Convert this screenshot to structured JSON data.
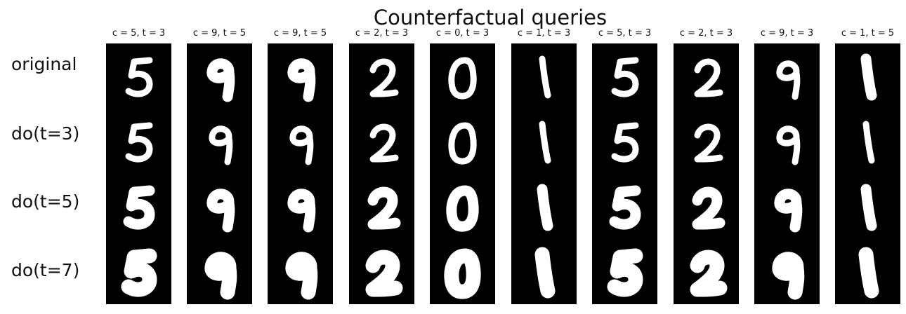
{
  "title": "Counterfactual queries",
  "row_labels": [
    "original",
    "do(t=3)",
    "do(t=5)",
    "do(t=7)"
  ],
  "columns": [
    {
      "label": "c = 5, t = 3",
      "digit": 5,
      "thickness_per_row": [
        3,
        3,
        5,
        7
      ]
    },
    {
      "label": "c = 9, t = 5",
      "digit": 9,
      "thickness_per_row": [
        5,
        3,
        5,
        7
      ]
    },
    {
      "label": "c = 9, t = 5",
      "digit": 9,
      "thickness_per_row": [
        5,
        3,
        5,
        7
      ]
    },
    {
      "label": "c = 2, t = 3",
      "digit": 2,
      "thickness_per_row": [
        3,
        3,
        5,
        7
      ]
    },
    {
      "label": "c = 0, t = 3",
      "digit": 0,
      "thickness_per_row": [
        3,
        3,
        5,
        7
      ]
    },
    {
      "label": "c = 1, t = 3",
      "digit": 1,
      "thickness_per_row": [
        3,
        3,
        5,
        7
      ]
    },
    {
      "label": "c = 5, t = 3",
      "digit": 5,
      "thickness_per_row": [
        3,
        3,
        5,
        7
      ]
    },
    {
      "label": "c = 2, t = 3",
      "digit": 2,
      "thickness_per_row": [
        3,
        3,
        5,
        7
      ]
    },
    {
      "label": "c = 9, t = 3",
      "digit": 9,
      "thickness_per_row": [
        3,
        3,
        5,
        7
      ]
    },
    {
      "label": "c = 1, t = 5",
      "digit": 1,
      "thickness_per_row": [
        5,
        3,
        5,
        7
      ]
    }
  ],
  "colors": {
    "background": "#ffffff",
    "panel": "#000000",
    "stroke": "#ffffff",
    "text": "#111111"
  }
}
